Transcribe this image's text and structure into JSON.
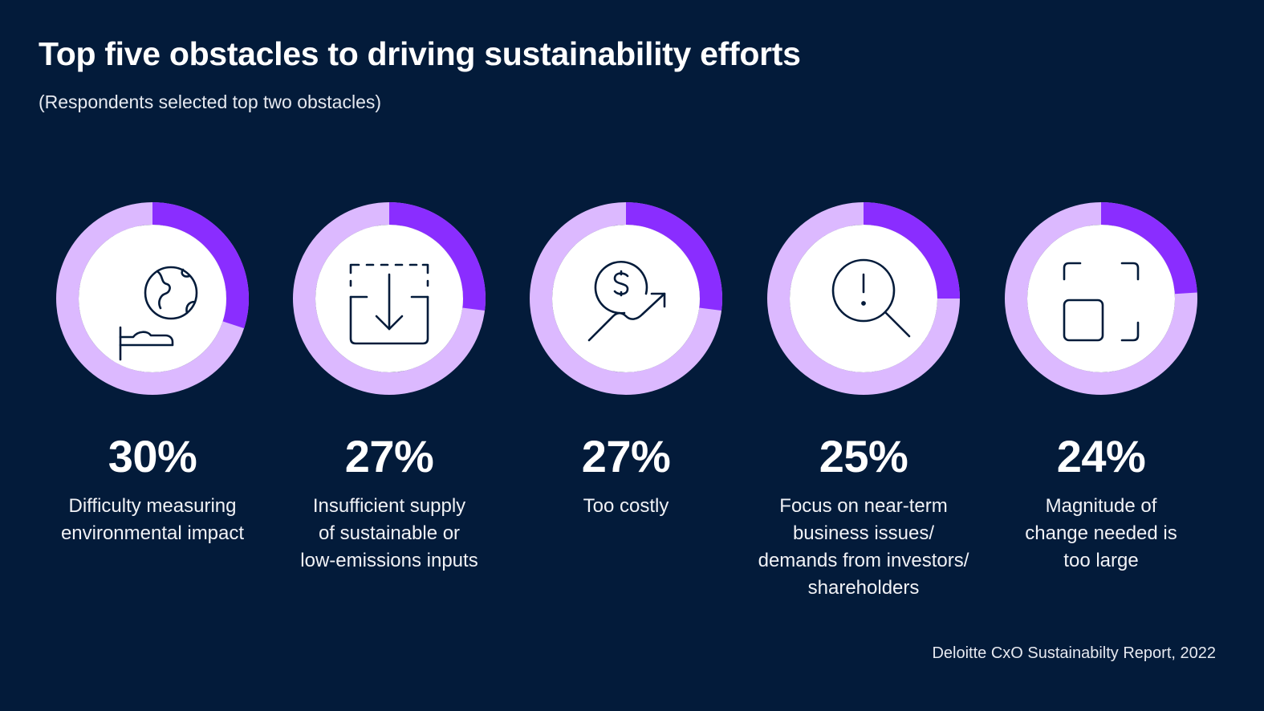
{
  "header": {
    "title": "Top five obstacles to driving sustainability efforts",
    "subtitle": "(Respondents selected top two obstacles)"
  },
  "chart_data": {
    "type": "donut",
    "title": "Top five obstacles to driving sustainability efforts",
    "subtitle": "(Respondents selected top two obstacles)",
    "unit": "%",
    "max": 100,
    "colors": {
      "track": "#dcb9ff",
      "fill": "#8a2dff",
      "center": "#ffffff",
      "background": "#031b3a"
    },
    "items": [
      {
        "value": 30,
        "value_label": "30%",
        "label_lines": [
          "Difficulty measuring",
          "environmental impact"
        ],
        "icon": "hand-holding-globe-icon"
      },
      {
        "value": 27,
        "value_label": "27%",
        "label_lines": [
          "Insufficient supply",
          "of sustainable or",
          "low-emissions inputs"
        ],
        "icon": "download-inbox-icon"
      },
      {
        "value": 27,
        "value_label": "27%",
        "label_lines": [
          "Too costly"
        ],
        "icon": "dollar-rising-chart-icon"
      },
      {
        "value": 25,
        "value_label": "25%",
        "label_lines": [
          "Focus on near-term",
          "business issues/",
          "demands from investors/",
          "shareholders"
        ],
        "icon": "alert-magnifier-icon"
      },
      {
        "value": 24,
        "value_label": "24%",
        "label_lines": [
          "Magnitude of",
          "change needed is",
          "too large"
        ],
        "icon": "scale-up-frame-icon"
      }
    ]
  },
  "footer": {
    "source": "Deloitte CxO Sustainabilty Report, 2022"
  }
}
